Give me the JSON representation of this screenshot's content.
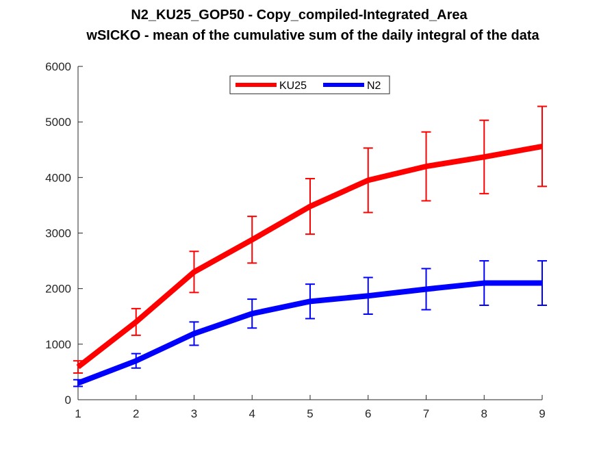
{
  "chart_data": {
    "type": "line",
    "title": "N2_KU25_GOP50 - Copy_compiled-Integrated_Area",
    "subtitle": "wSICKO - mean of the cumulative sum of the daily integral of the data",
    "xlabel": "",
    "ylabel": "",
    "x": [
      1,
      2,
      3,
      4,
      5,
      6,
      7,
      8,
      9
    ],
    "xlim": [
      1,
      9
    ],
    "ylim": [
      0,
      6000
    ],
    "xticks": [
      1,
      2,
      3,
      4,
      5,
      6,
      7,
      8,
      9
    ],
    "yticks": [
      0,
      1000,
      2000,
      3000,
      4000,
      5000,
      6000
    ],
    "grid": false,
    "legend_position": "top-center",
    "series": [
      {
        "name": "KU25",
        "color": "#ff0000",
        "values": [
          590,
          1400,
          2300,
          2880,
          3480,
          3950,
          4200,
          4370,
          4560
        ],
        "errors": [
          110,
          240,
          370,
          420,
          500,
          580,
          620,
          660,
          720
        ]
      },
      {
        "name": "N2",
        "color": "#0000ff",
        "values": [
          300,
          700,
          1190,
          1550,
          1770,
          1870,
          1990,
          2100,
          2100
        ],
        "errors": [
          60,
          130,
          210,
          260,
          310,
          330,
          370,
          400,
          400
        ]
      }
    ]
  }
}
